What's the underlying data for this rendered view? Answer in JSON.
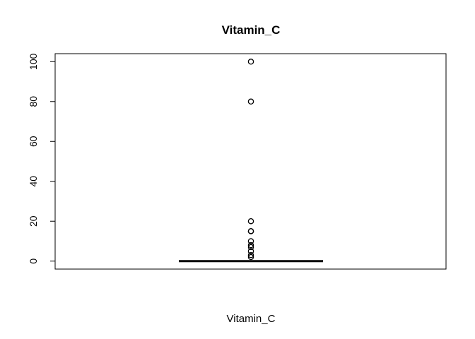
{
  "chart_data": {
    "type": "box",
    "title": "Vitamin_C",
    "xlabel": "Vitamin_C",
    "ylabel": "",
    "ylim": [
      -4,
      104
    ],
    "yticks": [
      0,
      20,
      40,
      60,
      80,
      100
    ],
    "ytick_labels": [
      "0",
      "20",
      "40",
      "60",
      "80",
      "100"
    ],
    "box": {
      "min": 0,
      "q1": 0,
      "median": 0,
      "q3": 0,
      "max": 0
    },
    "outliers": [
      2,
      3,
      5,
      7,
      8,
      10,
      15,
      15,
      20,
      80,
      100
    ],
    "grid": false,
    "colors": {
      "line": "#000000",
      "background": "#ffffff"
    }
  }
}
